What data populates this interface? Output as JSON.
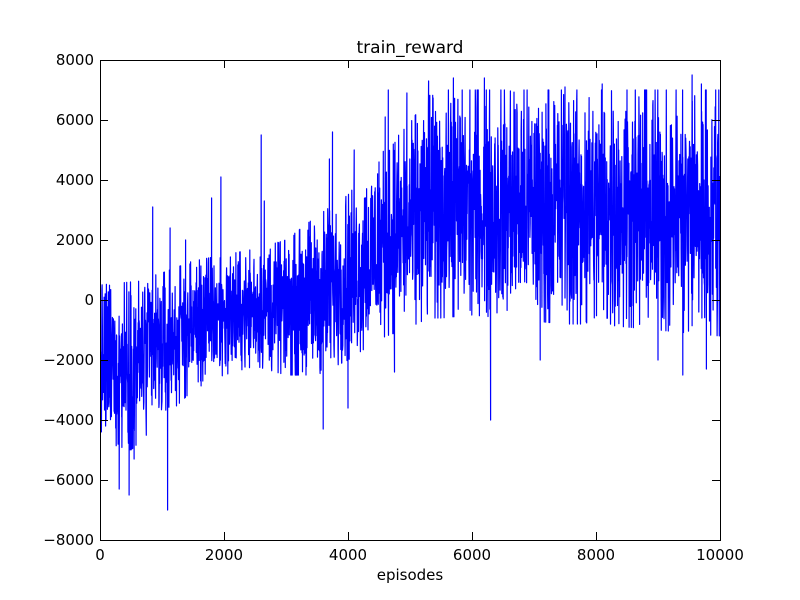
{
  "chart_data": {
    "type": "line",
    "title": "train_reward",
    "xlabel": "episodes",
    "ylabel": "",
    "xlim": [
      0,
      10000
    ],
    "ylim": [
      -8000,
      8000
    ],
    "xticks": [
      0,
      2000,
      4000,
      6000,
      8000,
      10000
    ],
    "xtick_labels": [
      "0",
      "2000",
      "4000",
      "6000",
      "8000",
      "10000"
    ],
    "yticks": [
      -8000,
      -6000,
      -4000,
      -2000,
      0,
      2000,
      4000,
      6000,
      8000
    ],
    "ytick_labels": [
      "−8000",
      "−6000",
      "−4000",
      "−2000",
      "0",
      "2000",
      "4000",
      "6000",
      "8000"
    ],
    "grid": false,
    "series": [
      {
        "color": "#0000ff",
        "episode_range": [
          0,
          10000
        ],
        "envelope": {
          "x": [
            0,
            500,
            1000,
            1500,
            2000,
            2500,
            3000,
            3500,
            4000,
            4500,
            5000,
            5300,
            5500,
            6000,
            6500,
            7000,
            7500,
            8000,
            8500,
            9000,
            9500,
            10000
          ],
          "y_low": [
            -4700,
            -5000,
            -4000,
            -3000,
            -2500,
            -2200,
            -2500,
            -2500,
            -2000,
            -1300,
            -900,
            -600,
            -600,
            -500,
            -600,
            -700,
            -800,
            -800,
            -900,
            -1000,
            -1100,
            -1200
          ],
          "y_high": [
            500,
            600,
            900,
            1300,
            1500,
            1700,
            2000,
            2800,
            3500,
            4800,
            5900,
            6800,
            7000,
            7000,
            7000,
            7000,
            7000,
            7000,
            7000,
            7000,
            7000,
            7000
          ]
        },
        "notable_points": [
          {
            "x": 90,
            "y": -4200
          },
          {
            "x": 270,
            "y": -3800
          },
          {
            "x": 310,
            "y": -6300
          },
          {
            "x": 350,
            "y": -3900
          },
          {
            "x": 470,
            "y": -6500
          },
          {
            "x": 550,
            "y": -5300
          },
          {
            "x": 850,
            "y": 3100
          },
          {
            "x": 1090,
            "y": -7000
          },
          {
            "x": 1130,
            "y": 2400
          },
          {
            "x": 1380,
            "y": 2000
          },
          {
            "x": 1800,
            "y": 3400
          },
          {
            "x": 1950,
            "y": 4100
          },
          {
            "x": 2600,
            "y": 5500
          },
          {
            "x": 2650,
            "y": 3300
          },
          {
            "x": 3600,
            "y": -4300
          },
          {
            "x": 3700,
            "y": 4700
          },
          {
            "x": 3750,
            "y": 5600
          },
          {
            "x": 4000,
            "y": -3600
          },
          {
            "x": 4100,
            "y": 5000
          },
          {
            "x": 4500,
            "y": 4600
          },
          {
            "x": 4600,
            "y": 6100
          },
          {
            "x": 4650,
            "y": 7000
          },
          {
            "x": 4750,
            "y": -2400
          },
          {
            "x": 4950,
            "y": 6900
          },
          {
            "x": 5300,
            "y": 7300
          },
          {
            "x": 5700,
            "y": 7400
          },
          {
            "x": 6200,
            "y": 7400
          },
          {
            "x": 6300,
            "y": -4000
          },
          {
            "x": 7100,
            "y": -2000
          },
          {
            "x": 7500,
            "y": 7100
          },
          {
            "x": 8100,
            "y": 7200
          },
          {
            "x": 8500,
            "y": 7000
          },
          {
            "x": 9000,
            "y": -2000
          },
          {
            "x": 9400,
            "y": -2500
          },
          {
            "x": 9550,
            "y": 7500
          },
          {
            "x": 9700,
            "y": 7200
          },
          {
            "x": 9780,
            "y": -2300
          },
          {
            "x": 9930,
            "y": 7000
          }
        ]
      }
    ]
  }
}
